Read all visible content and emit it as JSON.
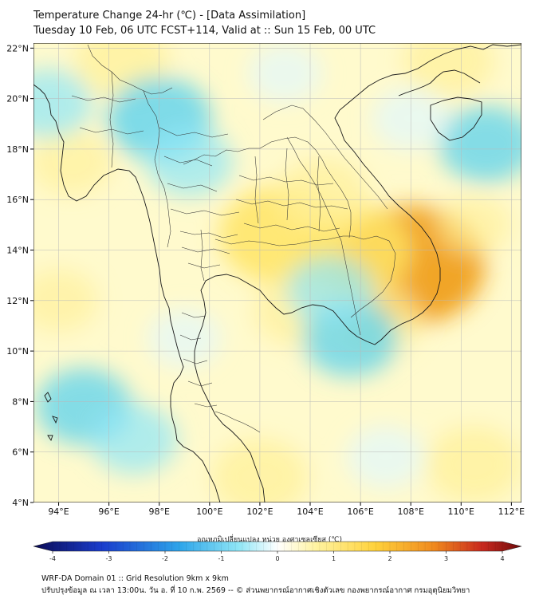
{
  "header": {
    "title_line1": "Temperature Change 24-hr (℃) - [Data Assimilation]",
    "title_line2": "Tuesday 10 Feb, 06 UTC FCST+114, Valid at :: Sun 15 Feb, 00 UTC"
  },
  "map": {
    "lat_labels": [
      "22°N",
      "20°N",
      "18°N",
      "16°N",
      "14°N",
      "12°N",
      "10°N",
      "8°N",
      "6°N",
      "4°N"
    ],
    "lon_labels": [
      "94°E",
      "96°E",
      "98°E",
      "100°E",
      "102°E",
      "104°E",
      "106°E",
      "108°E",
      "110°E",
      "112°E"
    ],
    "extent": {
      "lat_min": 4,
      "lat_max": 22.2,
      "lon_min": 93,
      "lon_max": 112.4
    },
    "field_anomalies": [
      {
        "lon": 102.8,
        "lat": 14.6,
        "value": 1.6
      },
      {
        "lon": 108.0,
        "lat": 13.4,
        "value": 2.2
      },
      {
        "lon": 105.8,
        "lat": 14.0,
        "value": 1.4
      },
      {
        "lon": 104.5,
        "lat": 16.2,
        "value": 0.9
      },
      {
        "lon": 103.5,
        "lat": 11.6,
        "value": 0.8
      },
      {
        "lon": 106.6,
        "lat": 11.2,
        "value": 0.9
      },
      {
        "lon": 96.5,
        "lat": 21.5,
        "value": 1.0
      },
      {
        "lon": 94.5,
        "lat": 17.5,
        "value": 0.7
      },
      {
        "lon": 102.0,
        "lat": 5.0,
        "value": 1.0
      },
      {
        "lon": 110.5,
        "lat": 5.5,
        "value": 1.0
      },
      {
        "lon": 109.5,
        "lat": 21.5,
        "value": 0.9
      },
      {
        "lon": 110.5,
        "lat": 15.0,
        "value": 0.5
      },
      {
        "lon": 94.0,
        "lat": 12.0,
        "value": 0.6
      },
      {
        "lon": 98.0,
        "lat": 19.2,
        "value": -1.2
      },
      {
        "lon": 99.2,
        "lat": 17.5,
        "value": -0.8
      },
      {
        "lon": 105.6,
        "lat": 10.5,
        "value": -1.0
      },
      {
        "lon": 104.8,
        "lat": 12.4,
        "value": -0.8
      },
      {
        "lon": 111.0,
        "lat": 18.2,
        "value": -1.0
      },
      {
        "lon": 95.0,
        "lat": 7.8,
        "value": -1.0
      },
      {
        "lon": 97.0,
        "lat": 6.5,
        "value": -0.8
      },
      {
        "lon": 93.6,
        "lat": 19.8,
        "value": -0.8
      },
      {
        "lon": 108.0,
        "lat": 19.2,
        "value": -0.6
      },
      {
        "lon": 99.0,
        "lat": 10.5,
        "value": -0.5
      },
      {
        "lon": 107.0,
        "lat": 5.8,
        "value": -0.6
      },
      {
        "lon": 103.0,
        "lat": 21.0,
        "value": -0.5
      }
    ]
  },
  "colorbar": {
    "title": "อุณหภูมิเปลี่ยนแปลง หน่วย องศาเซลเซียส (℃)",
    "tick_labels": [
      "-4",
      "-3",
      "-2",
      "-1",
      "0",
      "1",
      "2",
      "3",
      "4"
    ],
    "min": -4,
    "max": 4
  },
  "footer": {
    "line1": "WRF-DA Domain 01 :: Grid Resolution 9km x 9km",
    "line2": "ปรับปรุงข้อมูล ณ เวลา 13:00น. วัน อ. ที่ 10 ก.พ. 2569 -- © ส่วนพยากรณ์อากาศเชิงตัวเลข กองพยากรณ์อากาศ กรมอุตุนิยมวิทยา"
  },
  "colors": {
    "warm_light": "#fffacd",
    "warm_mid": "#ffe566",
    "warm_strong": "#f0a020",
    "cool_light": "#e0f8ff",
    "cool_mid": "#8fe6f6",
    "cool_strong": "#5bd2ee",
    "coast": "#1a1a1a",
    "border": "#333333",
    "grid": "#b9b9b9"
  }
}
